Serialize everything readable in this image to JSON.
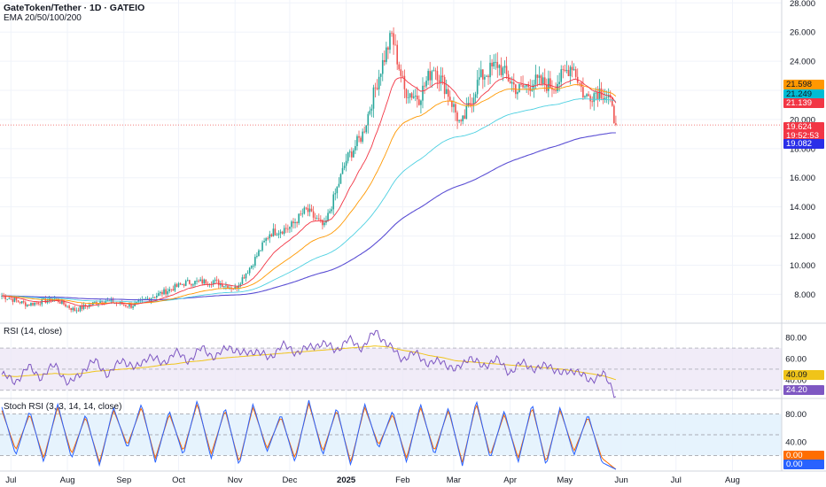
{
  "header": {
    "title": "GateToken/Tether · 1D · GATEIO",
    "ema_label": "EMA 20/50/100/200",
    "rsi_label": "RSI (14, close)",
    "stoch_label": "Stoch RSI (3, 3, 14, 14, close)"
  },
  "colors": {
    "up": "#26a69a",
    "down": "#ef5350",
    "ema20": "#f23645",
    "ema50": "#ff9800",
    "ema100": "#4dd0e1",
    "ema200": "#5b4fd4",
    "rsi": "#7e57c2",
    "rsi_ma": "#f0c419",
    "stoch_k": "#2962ff",
    "stoch_d": "#ff6d00",
    "band_rsi": "#ede7f6",
    "band_stoch": "#e3f2fd"
  },
  "badges": {
    "ema50": {
      "value": "21.598",
      "color": "#ff9800"
    },
    "ema100": {
      "value": "21.249",
      "color": "#00bcd4"
    },
    "ema20": {
      "value": "21.139",
      "color": "#f23645"
    },
    "price": {
      "value": "19.624",
      "color": "#f23645"
    },
    "countdown": {
      "value": "19:52:53",
      "color": "#f23645"
    },
    "ema200": {
      "value": "19.082",
      "color": "#2a2ee8"
    },
    "rsi_ma": {
      "value": "40.09",
      "color": "#f0c419"
    },
    "rsi": {
      "value": "24.20",
      "color": "#7e57c2"
    },
    "stoch_d": {
      "value": "0.00",
      "color": "#ff6d00"
    },
    "stoch_k": {
      "value": "0.00",
      "color": "#2962ff"
    }
  },
  "chart_data": [
    {
      "type": "candlestick",
      "title": "GateToken/Tether · 1D · GATEIO",
      "x_ticks": [
        "Jul",
        "Aug",
        "Sep",
        "Oct",
        "Nov",
        "Dec",
        "2025",
        "Feb",
        "Mar",
        "Apr",
        "May",
        "Jun",
        "Jul",
        "Aug"
      ],
      "y_ticks": [
        "8.000",
        "10.000",
        "12.000",
        "14.000",
        "16.000",
        "18.000",
        "20.000",
        "22.000",
        "24.000",
        "26.000",
        "28.000"
      ],
      "ylim": [
        6.2,
        28.2
      ],
      "last_price": 19.624,
      "price_path": [
        {
          "date": "2024-06-26",
          "price": 7.9
        },
        {
          "date": "2024-07-10",
          "price": 7.3
        },
        {
          "date": "2024-07-25",
          "price": 7.7
        },
        {
          "date": "2024-08-05",
          "price": 6.9
        },
        {
          "date": "2024-08-20",
          "price": 7.6
        },
        {
          "date": "2024-09-05",
          "price": 7.2
        },
        {
          "date": "2024-09-20",
          "price": 8.0
        },
        {
          "date": "2024-10-05",
          "price": 8.8
        },
        {
          "date": "2024-10-20",
          "price": 8.9
        },
        {
          "date": "2024-11-01",
          "price": 8.4
        },
        {
          "date": "2024-11-10",
          "price": 10.0
        },
        {
          "date": "2024-11-20",
          "price": 12.2
        },
        {
          "date": "2024-12-01",
          "price": 12.6
        },
        {
          "date": "2024-12-10",
          "price": 13.8
        },
        {
          "date": "2024-12-20",
          "price": 12.6
        },
        {
          "date": "2025-01-01",
          "price": 17.2
        },
        {
          "date": "2025-01-10",
          "price": 19.0
        },
        {
          "date": "2025-01-20",
          "price": 23.5
        },
        {
          "date": "2025-01-26",
          "price": 25.8
        },
        {
          "date": "2025-02-02",
          "price": 22.0
        },
        {
          "date": "2025-02-10",
          "price": 21.5
        },
        {
          "date": "2025-02-18",
          "price": 23.7
        },
        {
          "date": "2025-02-26",
          "price": 21.8
        },
        {
          "date": "2025-03-05",
          "price": 19.5
        },
        {
          "date": "2025-03-15",
          "price": 22.8
        },
        {
          "date": "2025-03-25",
          "price": 23.8
        },
        {
          "date": "2025-04-05",
          "price": 22.0
        },
        {
          "date": "2025-04-15",
          "price": 22.6
        },
        {
          "date": "2025-04-25",
          "price": 22.3
        },
        {
          "date": "2025-05-05",
          "price": 23.8
        },
        {
          "date": "2025-05-12",
          "price": 21.5
        },
        {
          "date": "2025-05-20",
          "price": 22.0
        },
        {
          "date": "2025-05-25",
          "price": 21.5
        },
        {
          "date": "2025-05-29",
          "price": 19.6
        }
      ],
      "ema_last": {
        "ema20": 21.139,
        "ema50": 21.598,
        "ema100": 21.249,
        "ema200": 19.082
      }
    },
    {
      "type": "line",
      "title": "RSI (14, close)",
      "y_ticks": [
        "40.00",
        "60.00",
        "80.00"
      ],
      "levels": [
        70,
        50,
        30
      ],
      "ylim": [
        24,
        91
      ],
      "series": [
        {
          "name": "RSI",
          "values": [
            45,
            38,
            52,
            42,
            55,
            35,
            48,
            58,
            44,
            60,
            50,
            63,
            55,
            66,
            58,
            70,
            61,
            72,
            64,
            68,
            60,
            73,
            66,
            70,
            75,
            68,
            78,
            70,
            86,
            72,
            60,
            65,
            55,
            58,
            48,
            62,
            52,
            60,
            47,
            56,
            50,
            54,
            45,
            50,
            38,
            47,
            24.2
          ]
        },
        {
          "name": "MA",
          "values": [
            44,
            43,
            44,
            45,
            46,
            45,
            46,
            48,
            49,
            50,
            51,
            52,
            54,
            55,
            57,
            58,
            60,
            61,
            62,
            63,
            64,
            65,
            66,
            67,
            68,
            69,
            70,
            71,
            72,
            71,
            68,
            66,
            63,
            61,
            58,
            57,
            56,
            55,
            54,
            53,
            52,
            51,
            50,
            48,
            46,
            44,
            40.09
          ]
        }
      ],
      "last": {
        "RSI": 24.2,
        "MA": 40.09
      }
    },
    {
      "type": "line",
      "title": "Stoch RSI (3, 3, 14, 14, close)",
      "y_ticks": [
        "40.00",
        "80.00"
      ],
      "levels": [
        80,
        50,
        20
      ],
      "ylim": [
        0,
        100
      ],
      "series": [
        {
          "name": "K",
          "values": [
            90,
            20,
            85,
            10,
            95,
            15,
            80,
            5,
            90,
            30,
            95,
            10,
            85,
            20,
            100,
            15,
            90,
            5,
            95,
            25,
            80,
            10,
            100,
            20,
            90,
            5,
            95,
            30,
            85,
            10,
            95,
            20,
            90,
            5,
            100,
            15,
            85,
            10,
            95,
            5,
            90,
            20,
            80,
            10,
            0
          ]
        },
        {
          "name": "D",
          "values": [
            85,
            28,
            80,
            16,
            90,
            22,
            76,
            10,
            86,
            35,
            90,
            16,
            80,
            26,
            95,
            22,
            86,
            10,
            90,
            30,
            76,
            16,
            95,
            26,
            86,
            10,
            90,
            35,
            80,
            16,
            90,
            26,
            86,
            10,
            95,
            20,
            80,
            16,
            90,
            10,
            86,
            26,
            76,
            16,
            0
          ]
        }
      ],
      "last": {
        "K": 0.0,
        "D": 0.0
      }
    }
  ]
}
